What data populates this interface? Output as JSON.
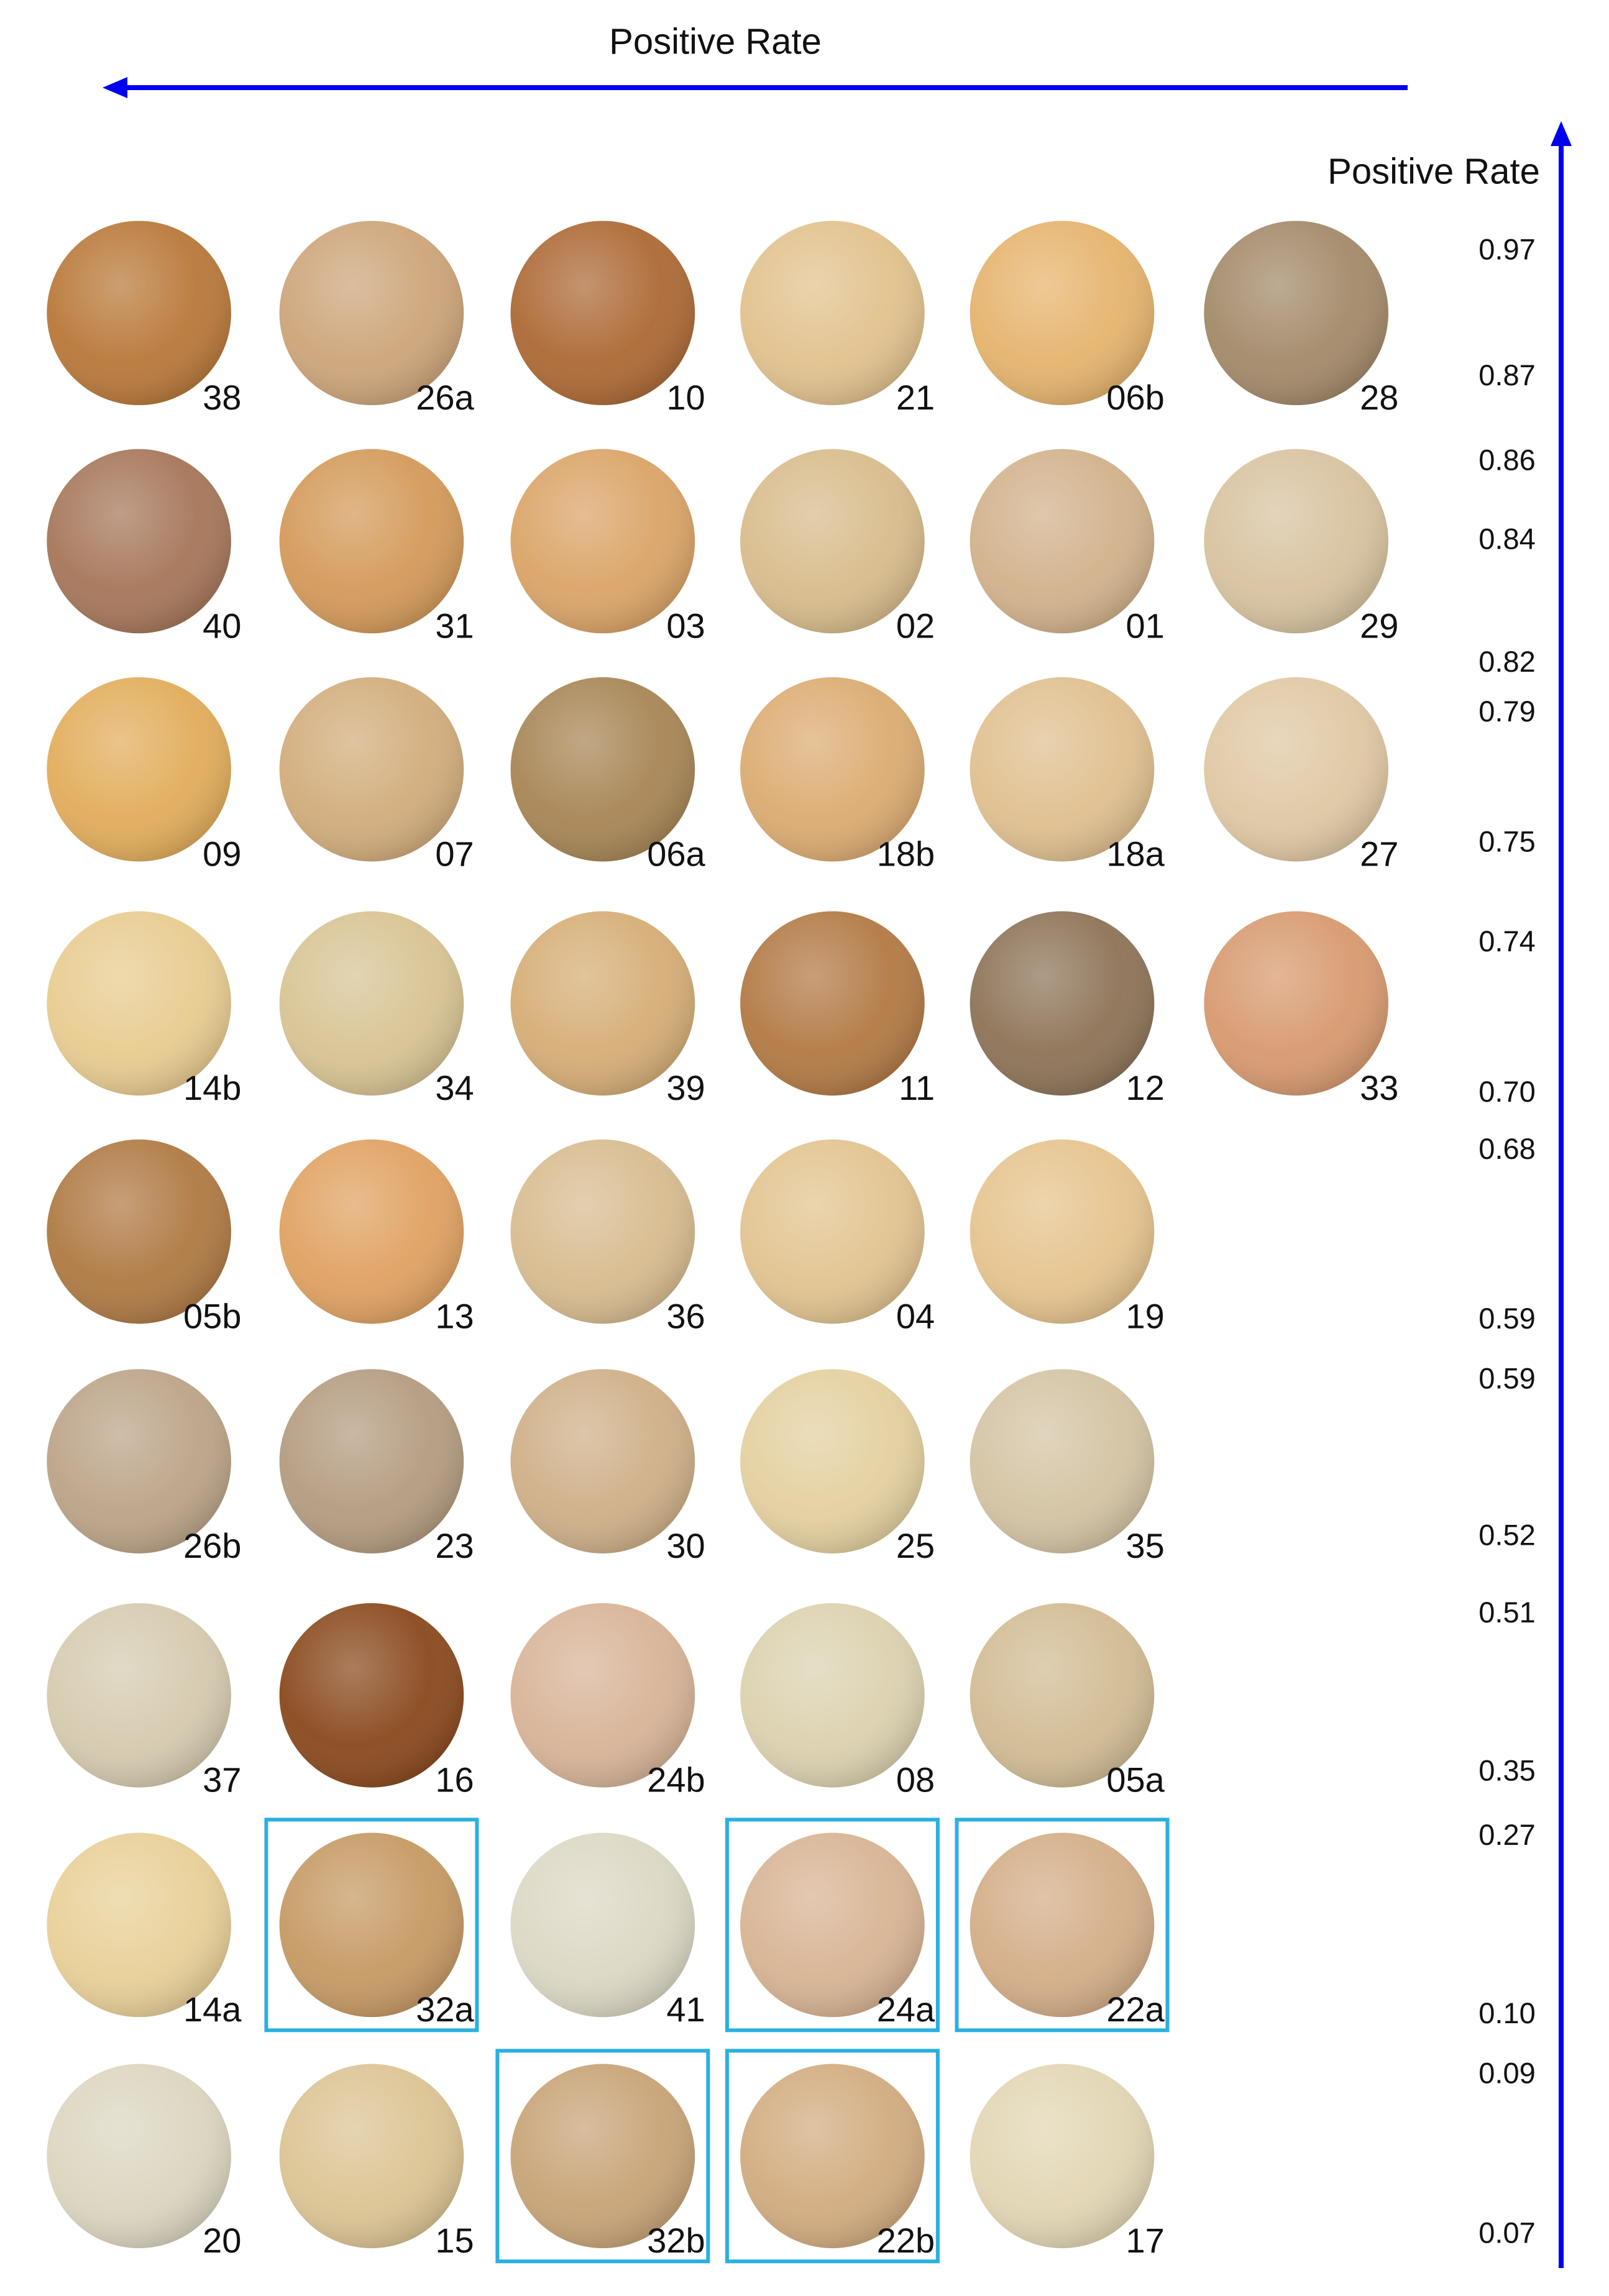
{
  "header": {
    "title": "Positive Rate"
  },
  "axis": {
    "label": "Positive Rate",
    "rates": [
      "0.97",
      "0.87",
      "0.86",
      "0.84",
      "0.82",
      "0.79",
      "0.75",
      "0.74",
      "0.70",
      "0.68",
      "0.59",
      "0.59",
      "0.52",
      "0.51",
      "0.35",
      "0.27",
      "0.10",
      "0.09",
      "0.07"
    ]
  },
  "rows": [
    [
      {
        "label": "38",
        "color": "#b9793a"
      },
      {
        "label": "26a",
        "color": "#cda57a"
      },
      {
        "label": "10",
        "color": "#ad6a36"
      },
      {
        "label": "21",
        "color": "#e2c28e"
      },
      {
        "label": "06b",
        "color": "#e6b46e"
      },
      {
        "label": "28",
        "color": "#a48a6a"
      }
    ],
    [
      {
        "label": "40",
        "color": "#a6775a"
      },
      {
        "label": "31",
        "color": "#d49a5a"
      },
      {
        "label": "03",
        "color": "#dba468"
      },
      {
        "label": "02",
        "color": "#d8bc8c"
      },
      {
        "label": "01",
        "color": "#d2b28c"
      },
      {
        "label": "29",
        "color": "#d8c3a0"
      }
    ],
    [
      {
        "label": "09",
        "color": "#e2ad5c"
      },
      {
        "label": "07",
        "color": "#d2ad7c"
      },
      {
        "label": "06a",
        "color": "#a88656"
      },
      {
        "label": "18b",
        "color": "#dcac72"
      },
      {
        "label": "18a",
        "color": "#e0c090"
      },
      {
        "label": "27",
        "color": "#e0c8a4"
      }
    ],
    [
      {
        "label": "14b",
        "color": "#e8cc90"
      },
      {
        "label": "34",
        "color": "#d8c494"
      },
      {
        "label": "39",
        "color": "#d6ae76"
      },
      {
        "label": "11",
        "color": "#b37a45"
      },
      {
        "label": "12",
        "color": "#8e7458"
      },
      {
        "label": "33",
        "color": "#d89a70"
      }
    ],
    [
      {
        "label": "05b",
        "color": "#b07a44"
      },
      {
        "label": "13",
        "color": "#e0a262"
      },
      {
        "label": "36",
        "color": "#d8bc90"
      },
      {
        "label": "04",
        "color": "#e2c490"
      },
      {
        "label": "19",
        "color": "#e6c48e"
      }
    ],
    [
      {
        "label": "26b",
        "color": "#bca488"
      },
      {
        "label": "23",
        "color": "#b49c80"
      },
      {
        "label": "30",
        "color": "#cfb088"
      },
      {
        "label": "25",
        "color": "#e4d0a0"
      },
      {
        "label": "35",
        "color": "#d4c4a4"
      }
    ],
    [
      {
        "label": "37",
        "color": "#d6cbb0"
      },
      {
        "label": "16",
        "color": "#8a4a1e"
      },
      {
        "label": "24b",
        "color": "#d8b498"
      },
      {
        "label": "08",
        "color": "#dcd2b0"
      },
      {
        "label": "05a",
        "color": "#d2bc94"
      }
    ],
    [
      {
        "label": "14a",
        "color": "#e8d098"
      },
      {
        "label": "32a",
        "color": "#c69a64",
        "highlighted": true
      },
      {
        "label": "41",
        "color": "#dcd8c4"
      },
      {
        "label": "24a",
        "color": "#d8b494",
        "highlighted": true
      },
      {
        "label": "22a",
        "color": "#d4ae88",
        "highlighted": true
      }
    ],
    [
      {
        "label": "20",
        "color": "#dcd6c0"
      },
      {
        "label": "15",
        "color": "#dcc494"
      },
      {
        "label": "32b",
        "color": "#c8a478",
        "highlighted": true
      },
      {
        "label": "22b",
        "color": "#d2ac80",
        "highlighted": true
      },
      {
        "label": "17",
        "color": "#e2d6b4"
      }
    ]
  ]
}
